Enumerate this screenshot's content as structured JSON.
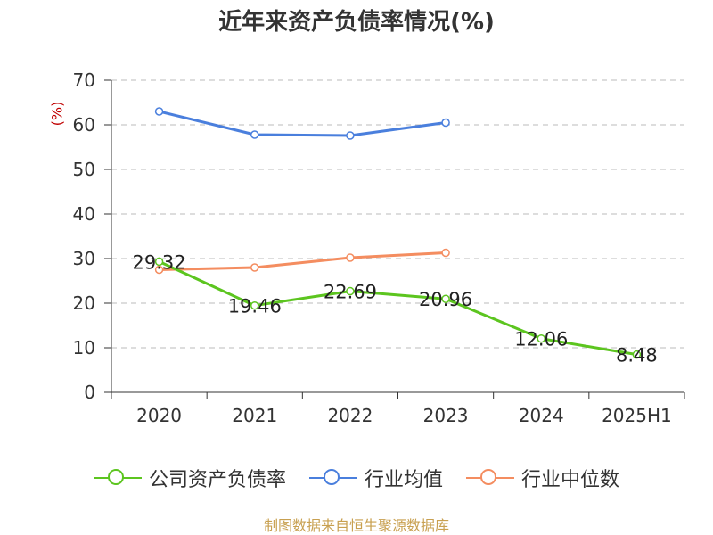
{
  "title": "近年来资产负债率情况(%)",
  "unit_label": "(%)",
  "source": "制图数据来自恒生聚源数据库",
  "colors": {
    "company": "#5cc51f",
    "industry_avg": "#4a7fdd",
    "industry_median": "#f48d60"
  },
  "chart_data": {
    "type": "line",
    "title": "近年来资产负债率情况(%)",
    "ylabel": "(%)",
    "categories": [
      "2020",
      "2021",
      "2022",
      "2023",
      "2024",
      "2025H1"
    ],
    "ylim": [
      0,
      70
    ],
    "yticks": [
      0,
      10,
      20,
      30,
      40,
      50,
      60,
      70
    ],
    "grid": true,
    "legend_position": "bottom",
    "series": [
      {
        "name": "公司资产负债率",
        "values": [
          29.32,
          19.46,
          22.69,
          20.96,
          12.06,
          8.48
        ],
        "labels": [
          "29.32",
          "19.46",
          "22.69",
          "20.96",
          "12.06",
          "8.48"
        ]
      },
      {
        "name": "行业均值",
        "values": [
          63.0,
          57.8,
          57.6,
          60.5,
          null,
          null
        ]
      },
      {
        "name": "行业中位数",
        "values": [
          27.5,
          28.0,
          30.2,
          31.3,
          null,
          null
        ]
      }
    ]
  }
}
